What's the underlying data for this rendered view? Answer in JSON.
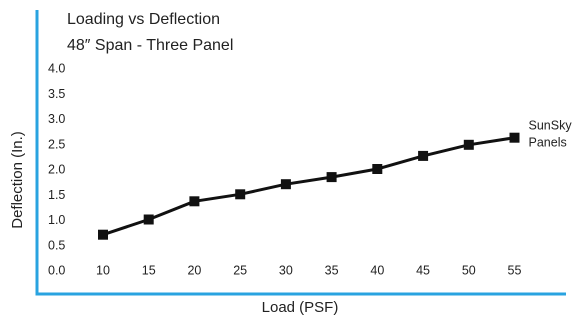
{
  "chart_data": {
    "type": "line",
    "title": "Loading vs Deflection",
    "subtitle": "48″ Span - Three Panel",
    "xlabel": "Load (PSF)",
    "ylabel": "Deflection (In.)",
    "x": [
      10,
      15,
      20,
      25,
      30,
      35,
      40,
      45,
      50,
      55
    ],
    "x_ticks": [
      "10",
      "15",
      "20",
      "25",
      "30",
      "35",
      "40",
      "45",
      "50",
      "55"
    ],
    "y_ticks": [
      "0.0",
      "0.5",
      "1.0",
      "1.5",
      "2.0",
      "2.5",
      "3.0",
      "3.5",
      "4.0"
    ],
    "ylim": [
      0,
      4
    ],
    "grid": false,
    "series": [
      {
        "name": "SunSky Panels",
        "name_lines": [
          "SunSky",
          "Panels"
        ],
        "values": [
          0.7,
          1.0,
          1.36,
          1.5,
          1.7,
          1.84,
          2.0,
          2.26,
          2.48,
          2.62
        ],
        "color": "#111111",
        "marker": "square"
      }
    ],
    "axis_color": "#29a3e0"
  }
}
